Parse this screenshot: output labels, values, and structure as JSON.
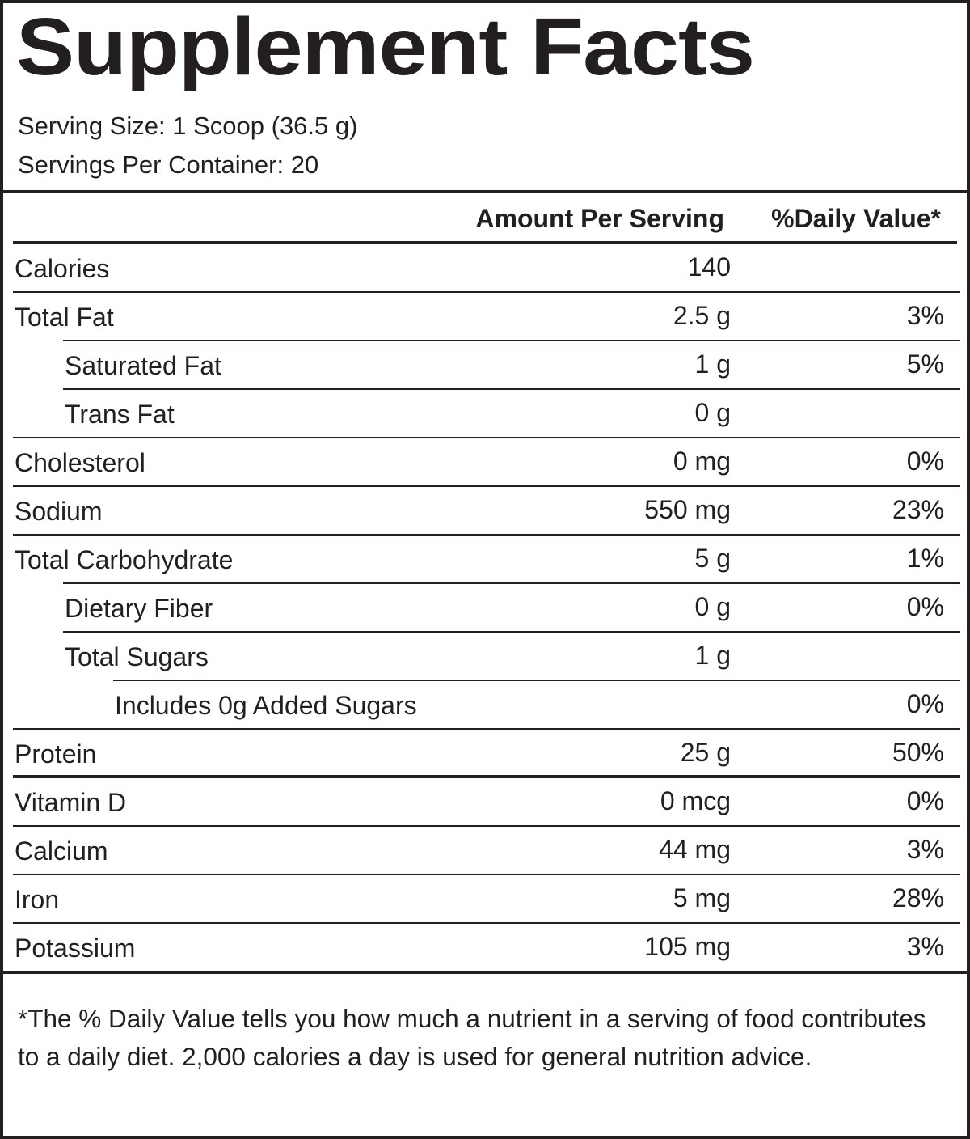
{
  "title": "Supplement Facts",
  "serving_size": "Serving Size: 1 Scoop (36.5 g)",
  "servings_per_container": "Servings Per Container: 20",
  "header": {
    "amount": "Amount Per Serving",
    "daily_value": "%Daily Value*"
  },
  "rows": [
    {
      "name": "Calories",
      "amount": "140",
      "dv": ""
    },
    {
      "name": "Total Fat",
      "amount": "2.5 g",
      "dv": "3%"
    },
    {
      "name": "Saturated Fat",
      "amount": "1 g",
      "dv": "5%"
    },
    {
      "name": "Trans Fat",
      "amount": "0 g",
      "dv": ""
    },
    {
      "name": "Cholesterol",
      "amount": "0 mg",
      "dv": "0%"
    },
    {
      "name": "Sodium",
      "amount": "550 mg",
      "dv": "23%"
    },
    {
      "name": "Total Carbohydrate",
      "amount": "5 g",
      "dv": "1%"
    },
    {
      "name": "Dietary Fiber",
      "amount": "0 g",
      "dv": "0%"
    },
    {
      "name": "Total Sugars",
      "amount": "1 g",
      "dv": ""
    },
    {
      "name": "Includes 0g Added Sugars",
      "amount": "",
      "dv": "0%"
    },
    {
      "name": "Protein",
      "amount": "25 g",
      "dv": "50%"
    },
    {
      "name": "Vitamin D",
      "amount": "0 mcg",
      "dv": "0%"
    },
    {
      "name": "Calcium",
      "amount": "44 mg",
      "dv": "3%"
    },
    {
      "name": "Iron",
      "amount": "5 mg",
      "dv": "28%"
    },
    {
      "name": "Potassium",
      "amount": "105 mg",
      "dv": "3%"
    }
  ],
  "footnote": "*The % Daily Value tells you how much a nutrient in a serving of food contributes to a daily diet. 2,000 calories a day is used for general nutrition advice."
}
